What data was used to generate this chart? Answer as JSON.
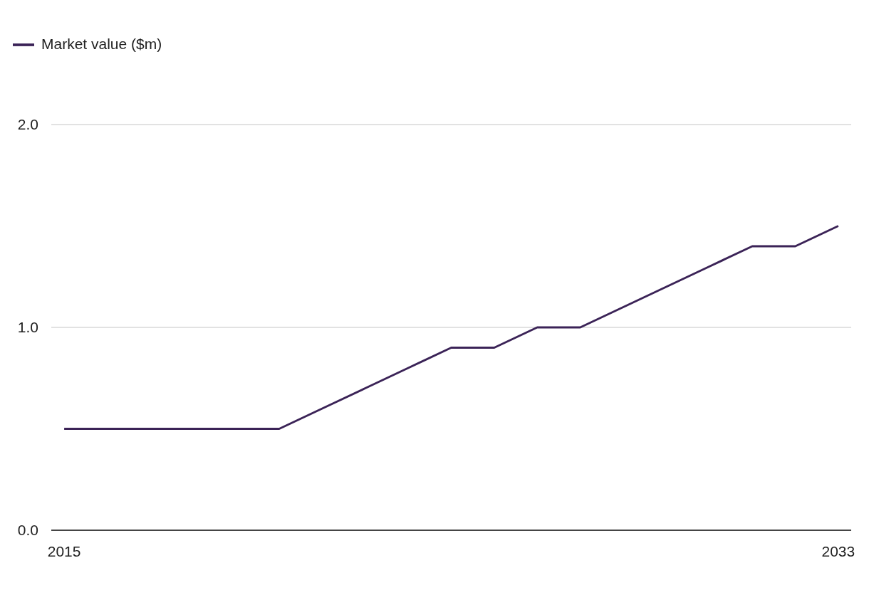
{
  "chart_data": {
    "type": "line",
    "x": [
      2015,
      2016,
      2017,
      2018,
      2019,
      2020,
      2021,
      2022,
      2023,
      2024,
      2025,
      2026,
      2027,
      2028,
      2029,
      2030,
      2031,
      2032,
      2033
    ],
    "series": [
      {
        "name": "Market value ($m)",
        "color": "#3b2357",
        "values": [
          0.5,
          0.5,
          0.5,
          0.5,
          0.5,
          0.5,
          0.6,
          0.7,
          0.8,
          0.9,
          0.9,
          1.0,
          1.0,
          1.1,
          1.2,
          1.3,
          1.4,
          1.4,
          1.5
        ]
      }
    ],
    "xlim": [
      2014.7,
      2033.3
    ],
    "xticks": [
      2015,
      2033
    ],
    "ylim": [
      0,
      2
    ],
    "yticks": [
      {
        "value": 0,
        "label": "0.0"
      },
      {
        "value": 1,
        "label": "1.0"
      },
      {
        "value": 2,
        "label": "2.0"
      }
    ],
    "grid": "y",
    "legend": "top left",
    "marker": "none",
    "line_style": "solid"
  }
}
